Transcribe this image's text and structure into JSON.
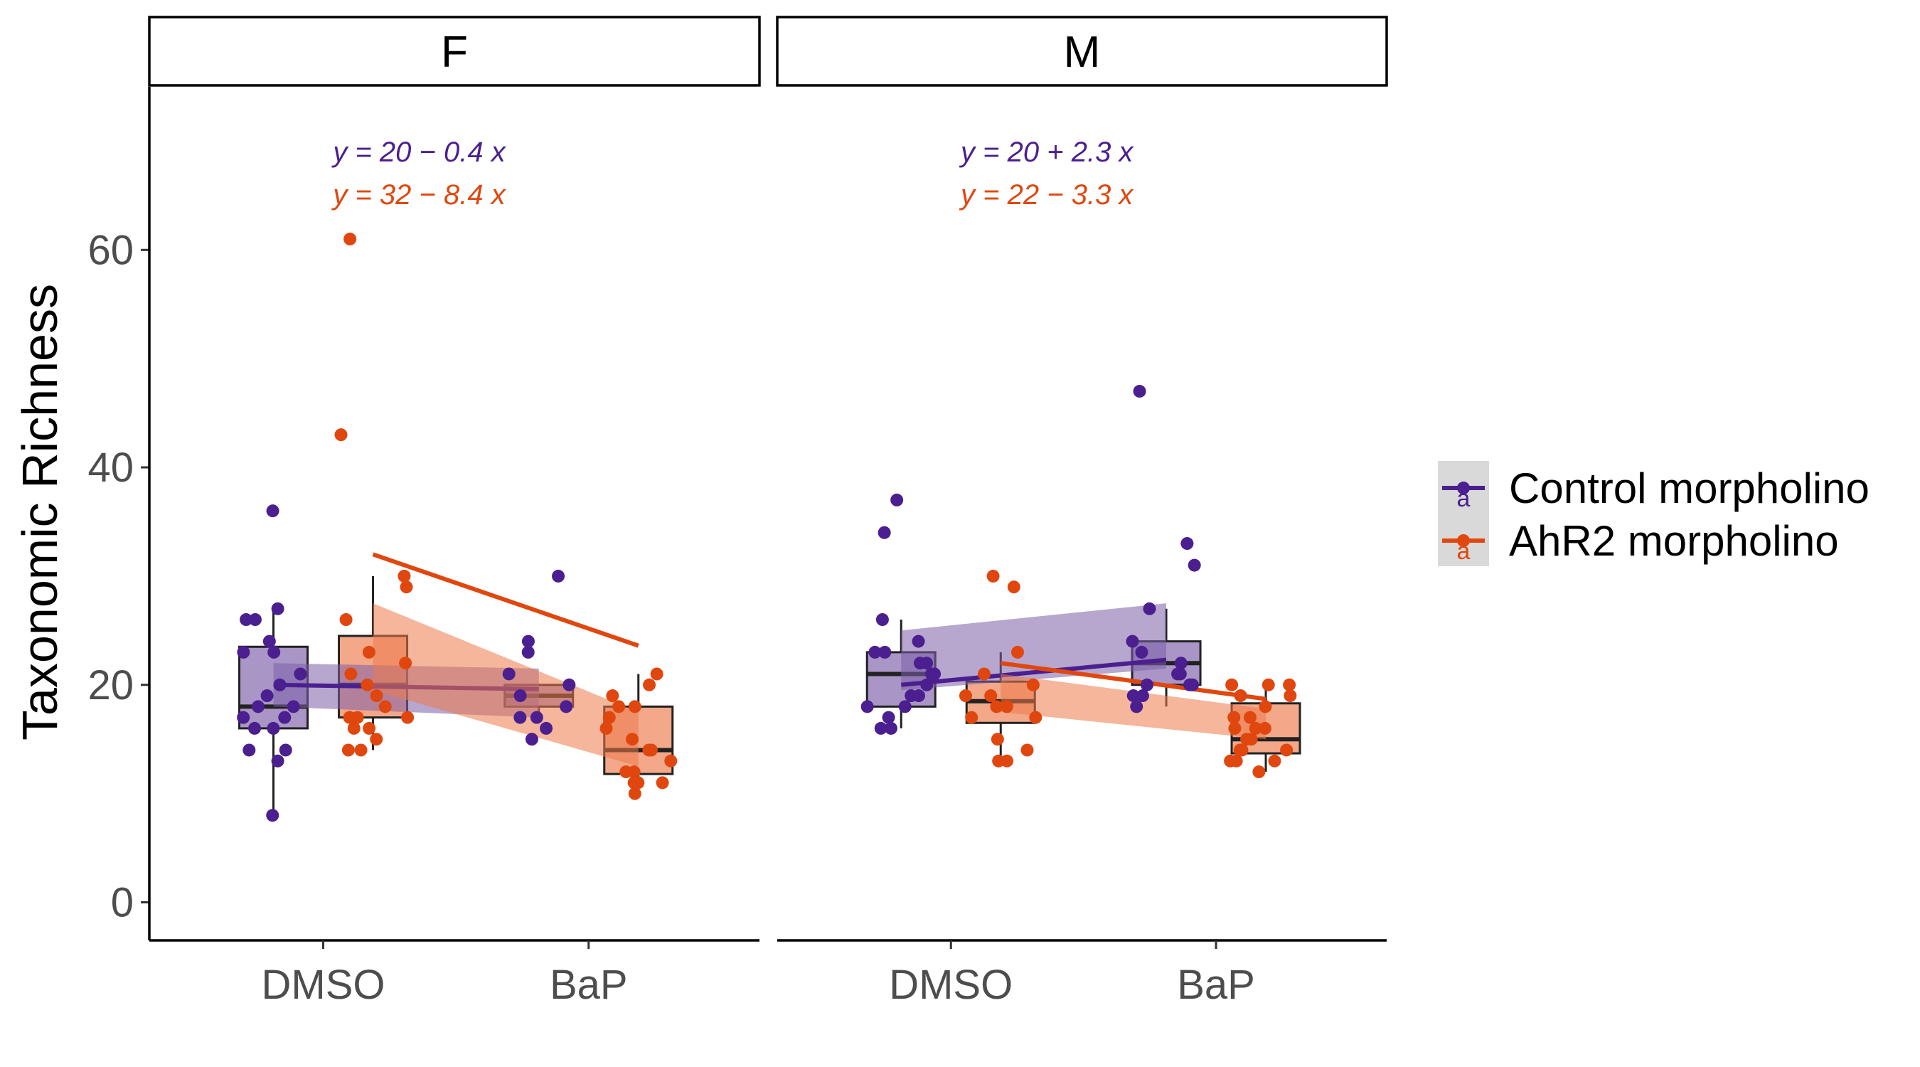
{
  "colors": {
    "control": "#4b1f8f",
    "control_fill": "#7b5ea7",
    "ahr2": "#e0470f",
    "ahr2_fill": "#ec7a4a",
    "median": "#222222"
  },
  "chart_data": {
    "type": "box",
    "ylabel": "Taxonomic Richness",
    "xlabel": "",
    "ylim": [
      -3.5,
      75
    ],
    "yticks": [
      0,
      20,
      40,
      60
    ],
    "ytick_labels": [
      "0",
      "20",
      "40",
      "60"
    ],
    "categories": [
      "DMSO",
      "BaP"
    ],
    "legend": {
      "placement": "right",
      "entries": [
        {
          "name": "Control morpholino",
          "key": "control",
          "glyph": "a"
        },
        {
          "name": "AhR2 morpholino",
          "key": "ahr2",
          "glyph": "a"
        }
      ]
    },
    "panels": [
      {
        "label": "F",
        "equations": [
          {
            "series": "control",
            "text": "y = 20 − 0.4 x"
          },
          {
            "series": "ahr2",
            "text": "y = 32 − 8.4 x"
          }
        ],
        "boxes": [
          {
            "category": "DMSO",
            "series": "control",
            "q1": 16,
            "median": 18,
            "q3": 23.5,
            "whisker_low": 8,
            "whisker_high": 27
          },
          {
            "category": "DMSO",
            "series": "ahr2",
            "q1": 17,
            "median": 20,
            "q3": 24.5,
            "whisker_low": 14,
            "whisker_high": 30
          },
          {
            "category": "BaP",
            "series": "control",
            "q1": 18,
            "median": 19,
            "q3": 20,
            "whisker_low": 17,
            "whisker_high": 20
          },
          {
            "category": "BaP",
            "series": "ahr2",
            "q1": 11.8,
            "median": 14,
            "q3": 18,
            "whisker_low": 10,
            "whisker_high": 21
          }
        ],
        "fits": [
          {
            "series": "control",
            "intercept": 20,
            "slope": -0.4,
            "band_start": [
              18,
              22
            ],
            "band_end": [
              17,
              21.5
            ]
          },
          {
            "series": "ahr2",
            "intercept": 32,
            "slope": -8.4,
            "band_start": [
              19.5,
              27.5
            ],
            "band_end": [
              12.5,
              17.5
            ]
          }
        ],
        "points": [
          {
            "series": "control",
            "category": "DMSO",
            "values": [
              36,
              27,
              26,
              26,
              24,
              23,
              23,
              21,
              20,
              19,
              18,
              18,
              17,
              17,
              16,
              16,
              14,
              14,
              13,
              8
            ]
          },
          {
            "series": "ahr2",
            "category": "DMSO",
            "values": [
              61,
              43,
              30,
              29,
              26,
              23,
              22,
              21,
              20,
              19,
              18,
              17,
              17,
              17,
              16,
              16,
              15,
              14,
              14
            ]
          },
          {
            "series": "control",
            "category": "BaP",
            "values": [
              30,
              24,
              23,
              21,
              20,
              19,
              18,
              17,
              17,
              16,
              15
            ]
          },
          {
            "series": "ahr2",
            "category": "BaP",
            "values": [
              21,
              20,
              19,
              18,
              18,
              17,
              16,
              15,
              14,
              14,
              13,
              12,
              12,
              11,
              11,
              11,
              10
            ]
          }
        ]
      },
      {
        "label": "M",
        "equations": [
          {
            "series": "control",
            "text": "y = 20 + 2.3 x"
          },
          {
            "series": "ahr2",
            "text": "y = 22 − 3.3 x"
          }
        ],
        "boxes": [
          {
            "category": "DMSO",
            "series": "control",
            "q1": 18,
            "median": 21,
            "q3": 23,
            "whisker_low": 16,
            "whisker_high": 26
          },
          {
            "category": "DMSO",
            "series": "ahr2",
            "q1": 16.5,
            "median": 18.5,
            "q3": 20.3,
            "whisker_low": 13,
            "whisker_high": 23
          },
          {
            "category": "BaP",
            "series": "control",
            "q1": 20,
            "median": 22,
            "q3": 24,
            "whisker_low": 18,
            "whisker_high": 27
          },
          {
            "category": "BaP",
            "series": "ahr2",
            "q1": 13.7,
            "median": 15,
            "q3": 18.3,
            "whisker_low": 12,
            "whisker_high": 20
          }
        ],
        "fits": [
          {
            "series": "control",
            "intercept": 20,
            "slope": 2.3,
            "band_start": [
              19.5,
              25
            ],
            "band_end": [
              21.5,
              27.5
            ]
          },
          {
            "series": "ahr2",
            "intercept": 22,
            "slope": -3.3,
            "band_start": [
              17.5,
              21
            ],
            "band_end": [
              15,
              17.8
            ]
          }
        ],
        "points": [
          {
            "series": "control",
            "category": "DMSO",
            "values": [
              37,
              34,
              26,
              24,
              23,
              23,
              22,
              22,
              21,
              21,
              20,
              19,
              19,
              18,
              18,
              17,
              16,
              16
            ]
          },
          {
            "series": "ahr2",
            "category": "DMSO",
            "values": [
              30,
              29,
              23,
              21,
              20,
              19,
              19,
              18,
              18,
              17,
              17,
              15,
              14,
              13,
              13
            ]
          },
          {
            "series": "control",
            "category": "BaP",
            "values": [
              47,
              33,
              31,
              27,
              24,
              23,
              22,
              21,
              21,
              20,
              20,
              20,
              19,
              19,
              18
            ]
          },
          {
            "series": "ahr2",
            "category": "BaP",
            "values": [
              20,
              20,
              20,
              19,
              19,
              18,
              17,
              17,
              16,
              16,
              16,
              15,
              15,
              14,
              14,
              14,
              13,
              13,
              13,
              12
            ]
          }
        ]
      }
    ]
  }
}
